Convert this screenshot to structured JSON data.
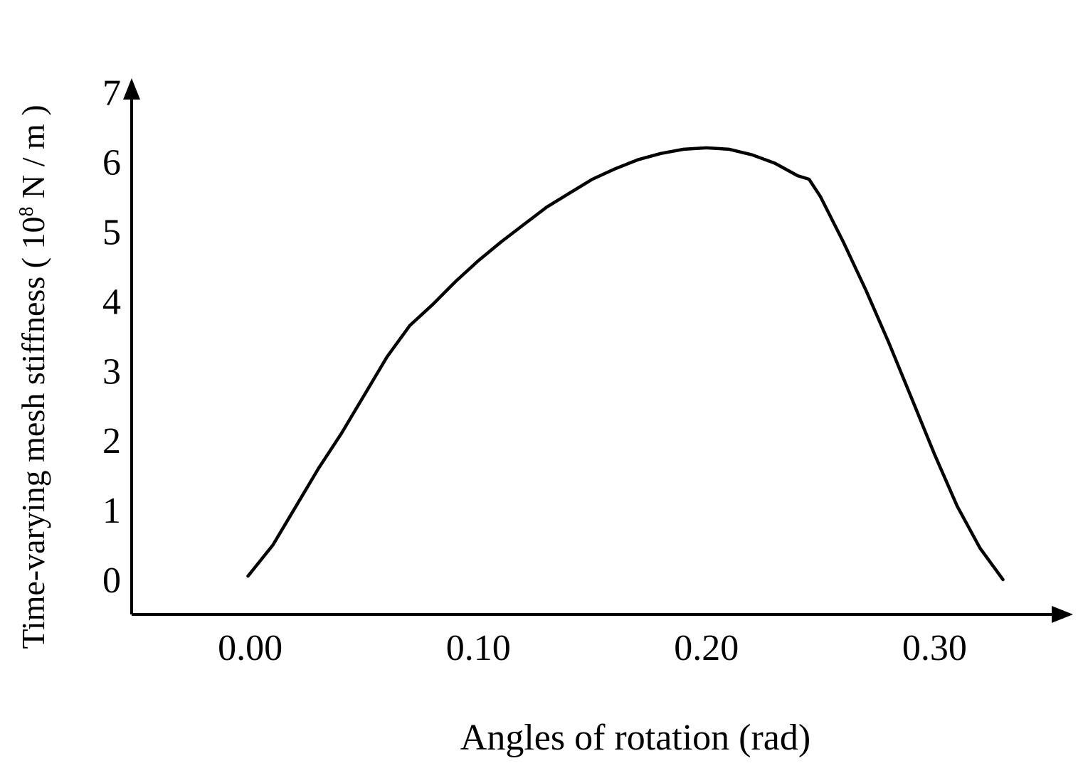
{
  "chart_data": {
    "type": "line",
    "title": "",
    "xlabel": "Angles of rotation (rad)",
    "ylabel": {
      "prefix": "Time-varying mesh stiffness ( 10",
      "superscript": "8",
      "suffix": " N / m )"
    },
    "x_ticks": [
      "0.00",
      "0.10",
      "0.20",
      "0.30"
    ],
    "x_tick_values": [
      0.0,
      0.1,
      0.2,
      0.3
    ],
    "y_ticks": [
      "0",
      "1",
      "2",
      "3",
      "4",
      "5",
      "6",
      "7"
    ],
    "y_tick_values": [
      0,
      1,
      2,
      3,
      4,
      5,
      6,
      7
    ],
    "xlim": [
      -0.052,
      0.352
    ],
    "ylim": [
      -0.5,
      7.2
    ],
    "grid": false,
    "legend": "none",
    "line_color": "#000000",
    "series": [
      {
        "x": [
          -0.001,
          0.01,
          0.02,
          0.03,
          0.04,
          0.05,
          0.06,
          0.07,
          0.08,
          0.09,
          0.1,
          0.11,
          0.12,
          0.13,
          0.14,
          0.15,
          0.16,
          0.17,
          0.18,
          0.19,
          0.2,
          0.21,
          0.22,
          0.23,
          0.24,
          0.245,
          0.25,
          0.26,
          0.27,
          0.28,
          0.29,
          0.3,
          0.31,
          0.32,
          0.33
        ],
        "y": [
          0.05,
          0.5,
          1.05,
          1.6,
          2.1,
          2.65,
          3.2,
          3.65,
          3.95,
          4.28,
          4.58,
          4.85,
          5.1,
          5.35,
          5.55,
          5.75,
          5.9,
          6.03,
          6.12,
          6.18,
          6.2,
          6.18,
          6.1,
          5.98,
          5.8,
          5.75,
          5.5,
          4.85,
          4.15,
          3.4,
          2.6,
          1.8,
          1.05,
          0.45,
          0.0
        ]
      }
    ]
  }
}
